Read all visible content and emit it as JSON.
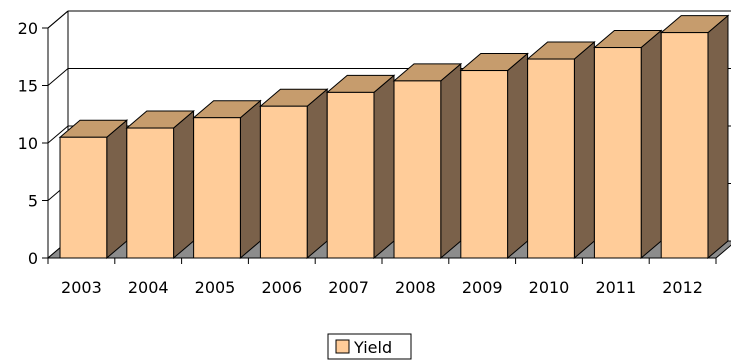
{
  "chart_data": {
    "type": "bar",
    "categories": [
      "2003",
      "2004",
      "2005",
      "2006",
      "2007",
      "2008",
      "2009",
      "2010",
      "2011",
      "2012"
    ],
    "series": [
      {
        "name": "Yield",
        "values": [
          10.5,
          11.3,
          12.2,
          13.2,
          14.4,
          15.4,
          16.3,
          17.3,
          18.3,
          19.6
        ]
      }
    ],
    "y_ticks": [
      "0",
      "5",
      "10",
      "15",
      "20"
    ],
    "ylim": [
      0,
      20
    ],
    "grid": "horizontal-major",
    "three_d": true,
    "legend_position": "bottom",
    "colors": {
      "bar_front": "#FFCC99",
      "bar_top": "#C69C6D",
      "bar_side": "#7A614A",
      "floor": "#8C8C8C",
      "stroke": "#000000"
    }
  }
}
